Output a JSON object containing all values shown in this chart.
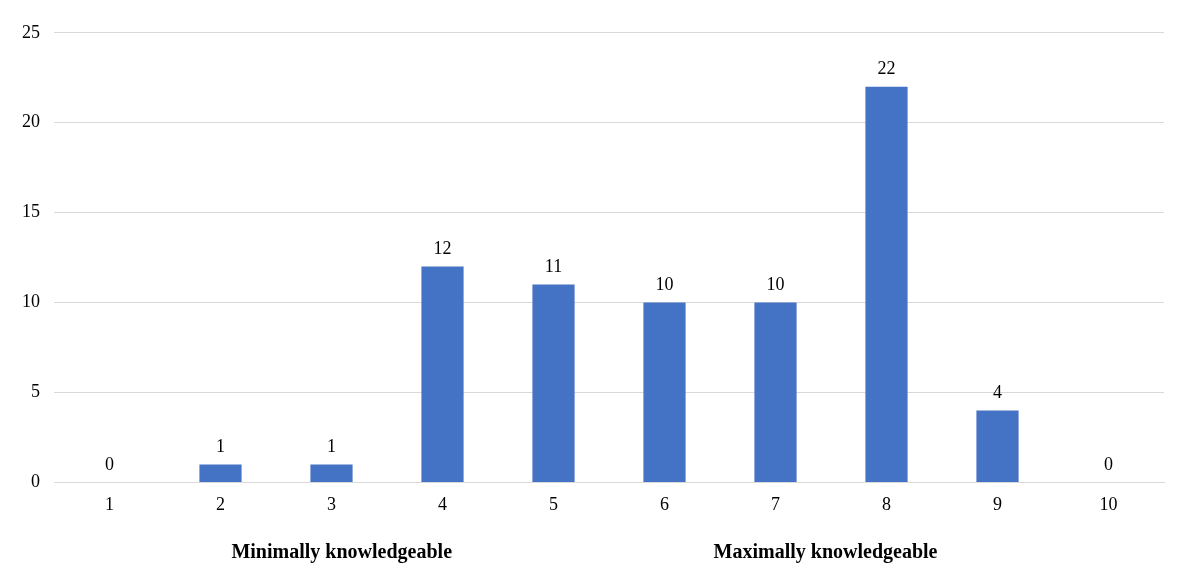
{
  "chart_data": {
    "type": "bar",
    "categories": [
      "1",
      "2",
      "3",
      "4",
      "5",
      "6",
      "7",
      "8",
      "9",
      "10"
    ],
    "values": [
      0,
      1,
      1,
      12,
      11,
      10,
      10,
      22,
      4,
      0
    ],
    "color": "#4472c4",
    "ylim": [
      0,
      25
    ],
    "yticks": [
      0,
      5,
      10,
      15,
      20,
      25
    ],
    "grid": "y",
    "data_labels": true,
    "legend": false,
    "annotations": [
      "Minimally knowledgeable",
      "Maximally knowledgeable"
    ]
  }
}
